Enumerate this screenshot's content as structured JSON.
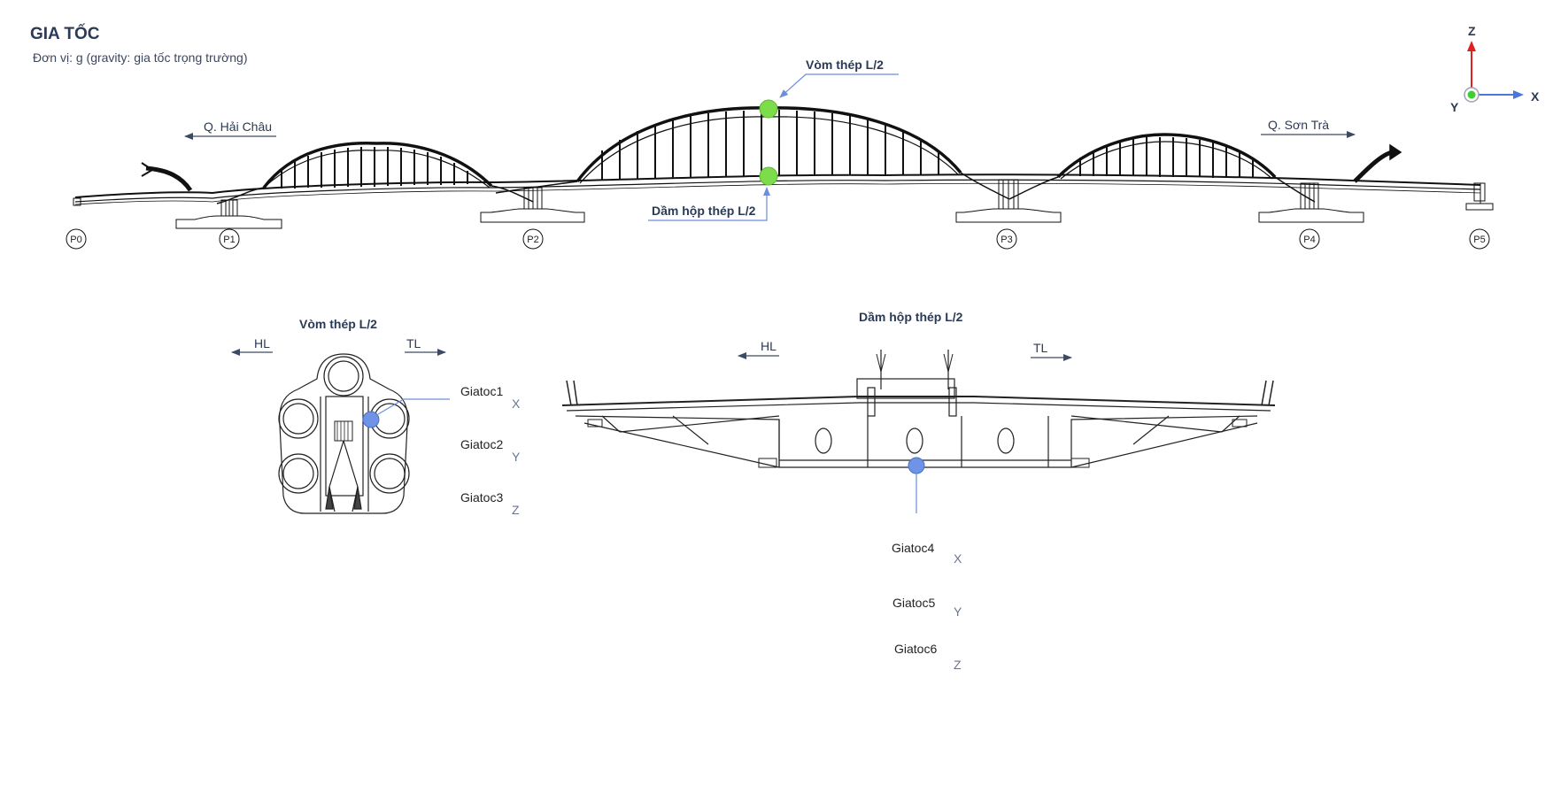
{
  "header": {
    "title": "GIA TỐC",
    "subtitle": "Đơn vị: g (gravity: gia tốc trọng trường)"
  },
  "colors": {
    "text": "#2b3a55",
    "accent_blue": "#6b8fd9",
    "sensor_green": "#7ddc4a",
    "sensor_blue": "#6f93e6",
    "axis_red": "#e02020",
    "axis_blue": "#4a78d8"
  },
  "elevation": {
    "callout_top": "Vòm thép L/2",
    "callout_bottom": "Dầm hộp thép L/2",
    "dir_left": "Q. Hải Châu",
    "dir_right": "Q. Sơn Trà",
    "piers": [
      "P0",
      "P1",
      "P2",
      "P3",
      "P4",
      "P5"
    ]
  },
  "coord_axes": {
    "z": "Z",
    "x": "X",
    "y": "Y"
  },
  "arch_section": {
    "title": "Vòm thép L/2",
    "dir_left": "HL",
    "dir_right": "TL",
    "sensors": [
      {
        "name": "Giatoc1",
        "axis": "X"
      },
      {
        "name": "Giatoc2",
        "axis": "Y"
      },
      {
        "name": "Giatoc3",
        "axis": "Z"
      }
    ]
  },
  "girder_section": {
    "title": "Dầm hộp thép L/2",
    "dir_left": "HL",
    "dir_right": "TL",
    "sensors": [
      {
        "name": "Giatoc4",
        "axis": "X"
      },
      {
        "name": "Giatoc5",
        "axis": "Y"
      },
      {
        "name": "Giatoc6",
        "axis": "Z"
      }
    ]
  }
}
